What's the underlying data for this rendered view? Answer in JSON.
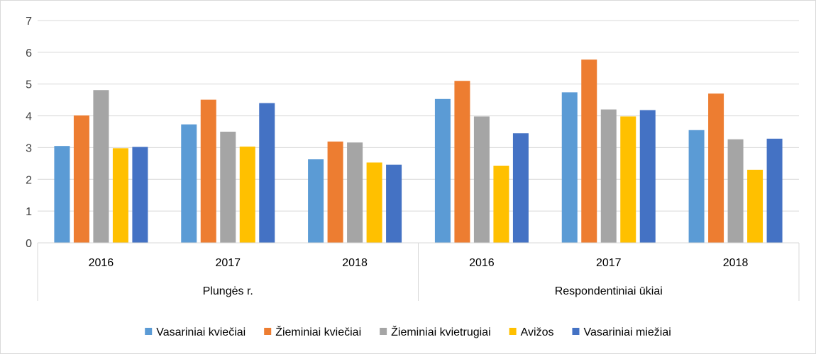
{
  "chart_data": {
    "type": "bar",
    "title": "",
    "xlabel": "",
    "ylabel": "",
    "ylim": [
      0,
      7
    ],
    "yticks": [
      0,
      1,
      2,
      3,
      4,
      5,
      6,
      7
    ],
    "grid": true,
    "legend_position": "bottom",
    "groups": [
      {
        "label": "Plungės r.",
        "categories": [
          "2016",
          "2017",
          "2018"
        ]
      },
      {
        "label": "Respondentiniai ūkiai",
        "categories": [
          "2016",
          "2017",
          "2018"
        ]
      }
    ],
    "series": [
      {
        "name": "Vasariniai kviečiai",
        "color": "#5b9bd5",
        "values": [
          3.05,
          3.73,
          2.63,
          4.53,
          4.74,
          3.55
        ]
      },
      {
        "name": "Žieminiai kviečiai",
        "color": "#ed7d31",
        "values": [
          4.01,
          4.51,
          3.19,
          5.1,
          5.77,
          4.7
        ]
      },
      {
        "name": "Žieminiai kvietrugiai",
        "color": "#a5a5a5",
        "values": [
          4.81,
          3.5,
          3.16,
          3.98,
          4.2,
          3.26
        ]
      },
      {
        "name": "Avižos",
        "color": "#ffc000",
        "values": [
          2.98,
          3.03,
          2.53,
          2.43,
          3.98,
          2.3
        ]
      },
      {
        "name": "Vasariniai miežiai",
        "color": "#4472c4",
        "values": [
          3.02,
          4.4,
          2.46,
          3.45,
          4.18,
          3.28
        ]
      }
    ]
  }
}
